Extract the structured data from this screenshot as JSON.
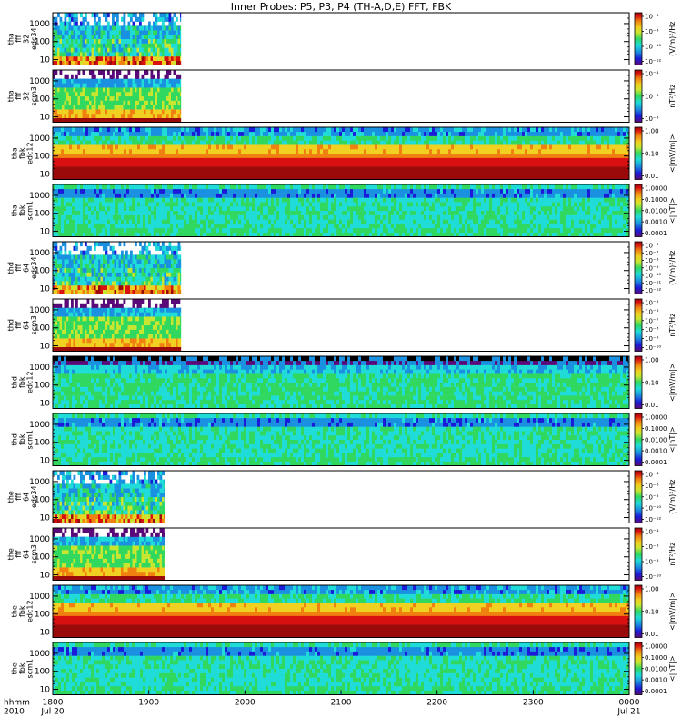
{
  "chart_data": {
    "type": "heatmap",
    "title": "Inner Probes: P5, P3, P4 (TH-A,D,E) FFT, FBK",
    "x_axis": {
      "row_labels": [
        "hhmm",
        "2010"
      ],
      "ticks": [
        {
          "label": "1800",
          "sublabel": "Jul 20",
          "value": 0
        },
        {
          "label": "1900",
          "sublabel": "",
          "value": 60
        },
        {
          "label": "2000",
          "sublabel": "",
          "value": 120
        },
        {
          "label": "2100",
          "sublabel": "",
          "value": 180
        },
        {
          "label": "2200",
          "sublabel": "",
          "value": 240
        },
        {
          "label": "2300",
          "sublabel": "",
          "value": 300
        },
        {
          "label": "0000",
          "sublabel": "Jul 21",
          "value": 360
        }
      ],
      "range": [
        0,
        360
      ]
    },
    "palette": [
      "#5a0a78",
      "#1a1ad8",
      "#1a90e0",
      "#20dcd8",
      "#30d860",
      "#c8e630",
      "#f0d020",
      "#f08010",
      "#d81010",
      "#9a0a0a"
    ],
    "panels": [
      {
        "ylabel": [
          "tha",
          "fff",
          "32",
          "edc34"
        ],
        "yticks": [
          "10",
          "100",
          "1000"
        ],
        "cbar_label": "(V/m)²/Hz",
        "cbar_ticks": [
          "10⁻¹²",
          "10⁻¹⁰",
          "10⁻⁸",
          "10⁻⁶"
        ],
        "data_end": 80,
        "mode": "burst"
      },
      {
        "ylabel": [
          "tha",
          "fff",
          "32",
          "scm3"
        ],
        "yticks": [
          "10",
          "100",
          "1000"
        ],
        "cbar_label": "nT²/Hz",
        "cbar_ticks": [
          "10⁻⁸",
          "10⁻⁶",
          "10⁻⁴"
        ],
        "data_end": 80,
        "mode": "scm"
      },
      {
        "ylabel": [
          "tha",
          "fbk",
          "edc12"
        ],
        "yticks": [
          "10",
          "100",
          "1000"
        ],
        "cbar_label": "<|mV/m|>",
        "cbar_ticks": [
          "0.01",
          "0.10",
          "1.00"
        ],
        "data_end": 360,
        "mode": "fbke"
      },
      {
        "ylabel": [
          "tha",
          "fbk",
          "scm1"
        ],
        "yticks": [
          "10",
          "100",
          "1000"
        ],
        "cbar_label": "<|nT|>",
        "cbar_ticks": [
          "0.0001",
          "0.0010",
          "0.0100",
          "0.1000",
          "1.0000"
        ],
        "data_end": 360,
        "mode": "fbkb"
      },
      {
        "ylabel": [
          "thd",
          "fff",
          "64",
          "edc34"
        ],
        "yticks": [
          "10",
          "100",
          "1000"
        ],
        "cbar_label": "(V/m)²/Hz",
        "cbar_ticks": [
          "10⁻¹²",
          "10⁻¹¹",
          "10⁻¹⁰",
          "10⁻⁹",
          "10⁻⁸",
          "10⁻⁷",
          "10⁻⁶"
        ],
        "data_end": 80,
        "mode": "burst"
      },
      {
        "ylabel": [
          "thd",
          "fff",
          "64",
          "scm3"
        ],
        "yticks": [
          "10",
          "100",
          "1000"
        ],
        "cbar_label": "nT²/Hz",
        "cbar_ticks": [
          "10⁻¹⁰",
          "10⁻⁹",
          "10⁻⁸",
          "10⁻⁷",
          "10⁻⁶",
          "10⁻⁵"
        ],
        "data_end": 80,
        "mode": "scm"
      },
      {
        "ylabel": [
          "thd",
          "fbk",
          "edc12"
        ],
        "yticks": [
          "10",
          "100",
          "1000"
        ],
        "cbar_label": "<|mV/m|>",
        "cbar_ticks": [
          "0.01",
          "0.10",
          "1.00"
        ],
        "data_end": 360,
        "mode": "fbke2"
      },
      {
        "ylabel": [
          "thd",
          "fbk",
          "scm1"
        ],
        "yticks": [
          "10",
          "100",
          "1000"
        ],
        "cbar_label": "<|nT|>",
        "cbar_ticks": [
          "0.0001",
          "0.0010",
          "0.0100",
          "0.1000",
          "1.0000"
        ],
        "data_end": 360,
        "mode": "fbkb"
      },
      {
        "ylabel": [
          "the",
          "fff",
          "64",
          "edc34"
        ],
        "yticks": [
          "10",
          "100",
          "1000"
        ],
        "cbar_label": "(V/m)²/Hz",
        "cbar_ticks": [
          "10⁻¹²",
          "10⁻¹⁰",
          "10⁻⁸",
          "10⁻⁶",
          "10⁻⁴"
        ],
        "data_end": 70,
        "mode": "burst"
      },
      {
        "ylabel": [
          "the",
          "fff",
          "64",
          "scm3"
        ],
        "yticks": [
          "10",
          "100",
          "1000"
        ],
        "cbar_label": "nT²/Hz",
        "cbar_ticks": [
          "10⁻¹⁰",
          "10⁻⁸",
          "10⁻⁶",
          "10⁻⁴"
        ],
        "data_end": 70,
        "mode": "scm"
      },
      {
        "ylabel": [
          "the",
          "fbk",
          "edc12"
        ],
        "yticks": [
          "10",
          "100",
          "1000"
        ],
        "cbar_label": "<|mV/m|>",
        "cbar_ticks": [
          "0.01",
          "0.10",
          "1.00"
        ],
        "data_end": 360,
        "mode": "fbke"
      },
      {
        "ylabel": [
          "the",
          "fbk",
          "scm1"
        ],
        "yticks": [
          "10",
          "100",
          "1000"
        ],
        "cbar_label": "<|nT|>",
        "cbar_ticks": [
          "0.0001",
          "0.0010",
          "0.0100",
          "0.1000",
          "1.0000"
        ],
        "data_end": 360,
        "mode": "fbkb"
      }
    ]
  }
}
